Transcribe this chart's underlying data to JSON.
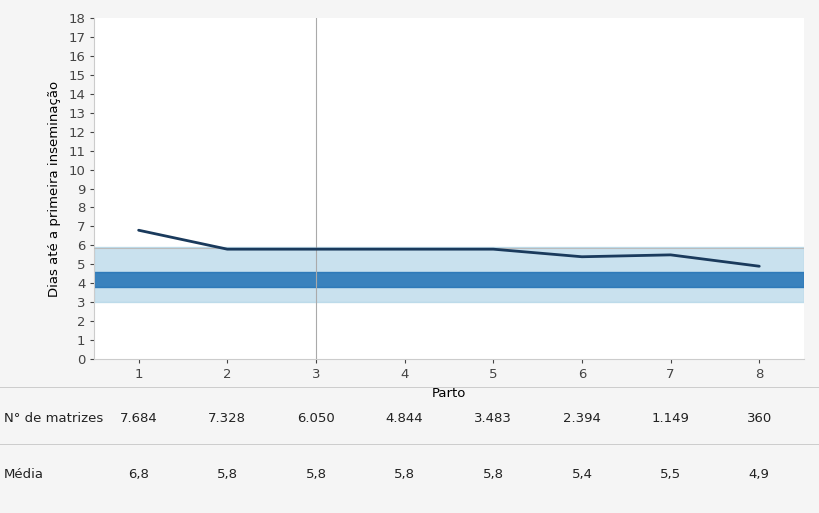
{
  "partos": [
    1,
    2,
    3,
    4,
    5,
    6,
    7,
    8
  ],
  "media": [
    6.8,
    5.8,
    5.8,
    5.8,
    5.8,
    5.4,
    5.5,
    4.9
  ],
  "n_matrizes": [
    "7.684",
    "7.328",
    "6.050",
    "4.844",
    "3.483",
    "2.394",
    "1.149",
    "360"
  ],
  "media_labels": [
    "6,8",
    "5,8",
    "5,8",
    "5,8",
    "5,8",
    "5,4",
    "5,5",
    "4,9"
  ],
  "band_dark_lower": 3.8,
  "band_dark_upper": 4.6,
  "band_light_lower": 3.0,
  "band_light_upper": 5.9,
  "ref_line_y": 5.85,
  "vline_x": 3,
  "line_color": "#1a3a5c",
  "band_dark_color": "#2171b5",
  "band_light_color": "#9ecae1",
  "ref_line_color": "#bbbbbb",
  "vline_color": "#aaaaaa",
  "ylabel": "Dias até a primeira inseminação",
  "xlabel": "Parto",
  "ylim": [
    0,
    18
  ],
  "yticks": [
    0,
    1,
    2,
    3,
    4,
    5,
    6,
    7,
    8,
    9,
    10,
    11,
    12,
    13,
    14,
    15,
    16,
    17,
    18
  ],
  "bg_color": "#f5f5f5",
  "plot_bg_color": "#ffffff",
  "row1_label": "N° de matrizes",
  "row2_label": "Média",
  "table_fontsize": 9.5,
  "axis_fontsize": 9.5,
  "ylabel_fontsize": 9.5
}
